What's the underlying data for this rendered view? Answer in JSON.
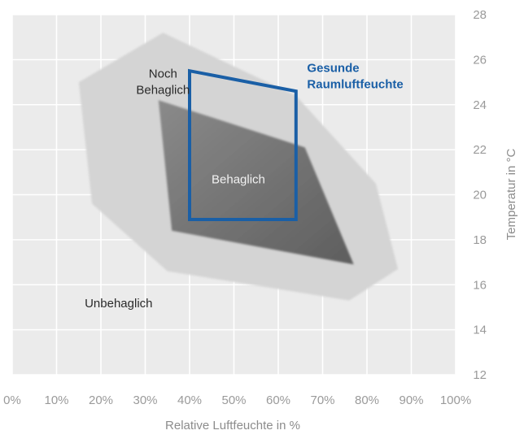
{
  "chart_data": {
    "type": "area",
    "xlabel": "Relative Luftfeuchte in %",
    "ylabel": "Temperatur in °C",
    "xlim": [
      0,
      100
    ],
    "ylim": [
      12,
      28
    ],
    "x_ticks": [
      0,
      10,
      20,
      30,
      40,
      50,
      60,
      70,
      80,
      90,
      100
    ],
    "x_tick_labels": [
      "0%",
      "10%",
      "20%",
      "30%",
      "40%",
      "50%",
      "60%",
      "70%",
      "80%",
      "90%",
      "100%"
    ],
    "y_ticks": [
      12,
      14,
      16,
      18,
      20,
      22,
      24,
      26,
      28
    ],
    "y_tick_labels": [
      "12",
      "14",
      "16",
      "18",
      "20",
      "22",
      "24",
      "26",
      "28"
    ],
    "grid": true,
    "legend": "none",
    "colors": {
      "plot_bg": "#ebebeb",
      "noch_behaglich_fill": "#d4d4d4",
      "behaglich_fill": "#787878",
      "gesund_stroke": "#1a5fa6",
      "gesund_text": "#1a5fa6",
      "tick_text": "#9a9a9a"
    },
    "regions": [
      {
        "label_lines": [
          "Noch",
          "Behaglich"
        ],
        "points": [
          [
            15,
            25
          ],
          [
            34,
            27.2
          ],
          [
            64,
            24.4
          ],
          [
            82,
            20.5
          ],
          [
            87,
            16.7
          ],
          [
            76,
            15.3
          ],
          [
            35,
            16.6
          ],
          [
            18,
            19.6
          ]
        ],
        "label_at": [
          34,
          25.2
        ]
      },
      {
        "label_lines": [
          "Behaglich"
        ],
        "points": [
          [
            33,
            24.2
          ],
          [
            66,
            22.1
          ],
          [
            77,
            16.9
          ],
          [
            36,
            18.4
          ]
        ],
        "label_at": [
          51,
          20.5
        ]
      }
    ],
    "box": {
      "label_lines": [
        "Gesunde",
        "Raumluftfeuchte"
      ],
      "points": [
        [
          40,
          25.5
        ],
        [
          64,
          24.6
        ],
        [
          64,
          18.9
        ],
        [
          40,
          18.9
        ]
      ],
      "label_at": [
        66.5,
        25.45
      ]
    },
    "annotations": [
      {
        "text": "Unbehaglich",
        "at": [
          24,
          15
        ]
      }
    ]
  }
}
